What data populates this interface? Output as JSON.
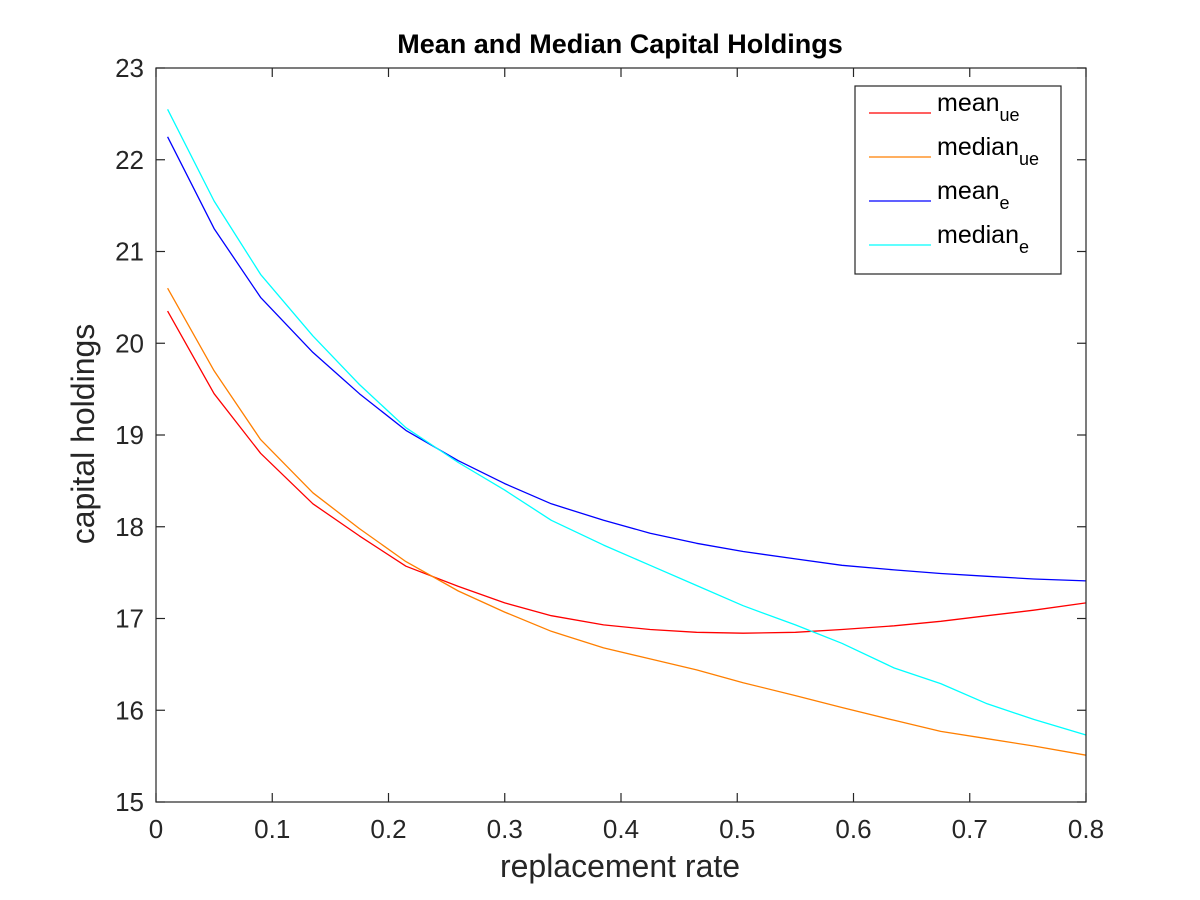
{
  "chart_data": {
    "type": "line",
    "title": "Mean and Median Capital Holdings",
    "xlabel": "replacement rate",
    "ylabel": "capital holdings",
    "xlim": [
      0,
      0.8
    ],
    "ylim": [
      15,
      23
    ],
    "xticks": [
      0,
      0.1,
      0.2,
      0.3,
      0.4,
      0.5,
      0.6,
      0.7,
      0.8
    ],
    "xtick_labels": [
      "0",
      "0.1",
      "0.2",
      "0.3",
      "0.4",
      "0.5",
      "0.6",
      "0.7",
      "0.8"
    ],
    "yticks": [
      15,
      16,
      17,
      18,
      19,
      20,
      21,
      22,
      23
    ],
    "ytick_labels": [
      "15",
      "16",
      "17",
      "18",
      "19",
      "20",
      "21",
      "22",
      "23"
    ],
    "grid": false,
    "legend_position": "top-right",
    "series": [
      {
        "name": "mean",
        "name_sub": "ue",
        "color": "#ff0000",
        "x": [
          0.01,
          0.05,
          0.09,
          0.135,
          0.175,
          0.215,
          0.26,
          0.3,
          0.34,
          0.385,
          0.425,
          0.465,
          0.505,
          0.55,
          0.59,
          0.635,
          0.675,
          0.715,
          0.755,
          0.8
        ],
        "y": [
          20.35,
          19.45,
          18.8,
          18.25,
          17.9,
          17.57,
          17.35,
          17.17,
          17.03,
          16.93,
          16.88,
          16.85,
          16.84,
          16.85,
          16.88,
          16.92,
          16.97,
          17.03,
          17.09,
          17.17
        ]
      },
      {
        "name": "median",
        "name_sub": "ue",
        "color": "#ff7f00",
        "x": [
          0.01,
          0.05,
          0.09,
          0.135,
          0.175,
          0.215,
          0.26,
          0.3,
          0.34,
          0.385,
          0.425,
          0.465,
          0.505,
          0.55,
          0.59,
          0.635,
          0.675,
          0.715,
          0.755,
          0.8
        ],
        "y": [
          20.6,
          19.7,
          18.95,
          18.37,
          17.98,
          17.62,
          17.3,
          17.07,
          16.86,
          16.68,
          16.56,
          16.44,
          16.3,
          16.16,
          16.03,
          15.89,
          15.77,
          15.69,
          15.61,
          15.51
        ]
      },
      {
        "name": "mean",
        "name_sub": "e",
        "color": "#0000ff",
        "x": [
          0.01,
          0.05,
          0.09,
          0.135,
          0.175,
          0.215,
          0.26,
          0.3,
          0.34,
          0.385,
          0.425,
          0.465,
          0.505,
          0.55,
          0.59,
          0.635,
          0.675,
          0.715,
          0.755,
          0.8
        ],
        "y": [
          22.25,
          21.25,
          20.5,
          19.9,
          19.45,
          19.05,
          18.72,
          18.47,
          18.25,
          18.07,
          17.93,
          17.82,
          17.73,
          17.65,
          17.58,
          17.53,
          17.49,
          17.46,
          17.43,
          17.41
        ]
      },
      {
        "name": "median",
        "name_sub": "e",
        "color": "#00ffff",
        "x": [
          0.01,
          0.05,
          0.09,
          0.135,
          0.175,
          0.215,
          0.26,
          0.3,
          0.34,
          0.385,
          0.425,
          0.465,
          0.505,
          0.55,
          0.59,
          0.635,
          0.675,
          0.715,
          0.755,
          0.8
        ],
        "y": [
          22.55,
          21.55,
          20.75,
          20.08,
          19.55,
          19.08,
          18.7,
          18.4,
          18.07,
          17.8,
          17.58,
          17.36,
          17.14,
          16.93,
          16.73,
          16.46,
          16.29,
          16.07,
          15.9,
          15.73
        ]
      }
    ]
  }
}
